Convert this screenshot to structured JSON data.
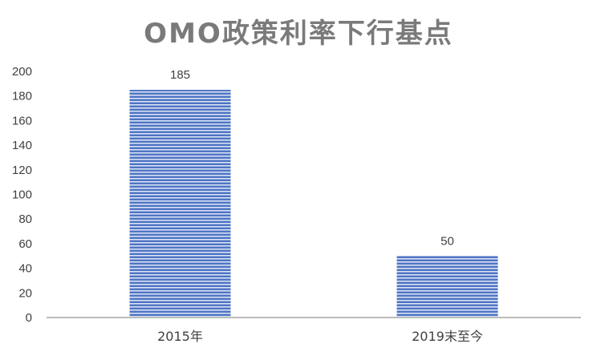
{
  "chart_data": {
    "type": "bar",
    "title": "OMO政策利率下行基点",
    "categories": [
      "2015年",
      "2019末至今"
    ],
    "values": [
      185,
      50
    ],
    "data_labels": [
      "185",
      "50"
    ],
    "ylim": [
      0,
      200
    ],
    "yticks": [
      0,
      20,
      40,
      60,
      80,
      100,
      120,
      140,
      160,
      180,
      200
    ],
    "xlabel": "",
    "ylabel": "",
    "grid": false,
    "legend": "none",
    "bar_color": "#4f74c4",
    "bar_stripe_color": "#dfe7f6",
    "axis_color": "#a6a6a6"
  }
}
